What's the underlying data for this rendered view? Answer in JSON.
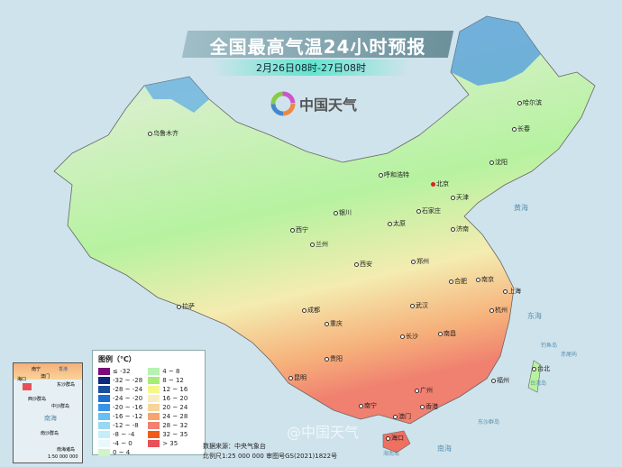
{
  "header": {
    "title": "全国最高气温24小时预报",
    "subtitle": "2月26日08时-27日08时"
  },
  "logo": {
    "text": "中国天气",
    "icon": "china-weather-swirl-icon"
  },
  "cities": [
    "乌鲁木齐",
    "哈尔滨",
    "长春",
    "沈阳",
    "呼和浩特",
    "北京",
    "天津",
    "石家庄",
    "太原",
    "济南",
    "银川",
    "西宁",
    "兰州",
    "郑州",
    "西安",
    "合肥",
    "南京",
    "上海",
    "拉萨",
    "成都",
    "武汉",
    "杭州",
    "重庆",
    "长沙",
    "南昌",
    "贵阳",
    "福州",
    "台北",
    "昆明",
    "广州",
    "南宁",
    "澳门",
    "香港",
    "海口"
  ],
  "seas": [
    "黄海",
    "东海",
    "南海",
    "台湾岛",
    "钓鱼岛",
    "赤尾屿",
    "东沙群岛",
    "海南岛"
  ],
  "legend": {
    "title": "图例（℃）",
    "items": [
      {
        "label": "≤ -32",
        "color": "#7b0a7b"
      },
      {
        "label": "-32 ~ -28",
        "color": "#0b2a7a"
      },
      {
        "label": "-28 ~ -24",
        "color": "#1c4ea0"
      },
      {
        "label": "-24 ~ -20",
        "color": "#1f6fd0"
      },
      {
        "label": "-20 ~ -16",
        "color": "#3a94e6"
      },
      {
        "label": "-16 ~ -12",
        "color": "#66c0f2"
      },
      {
        "label": "-12 ~ -8",
        "color": "#98d8f0"
      },
      {
        "label": "-8 ~ -4",
        "color": "#c4eef8"
      },
      {
        "label": "-4 ~ 0",
        "color": "#e8f8fb"
      },
      {
        "label": "0 ~ 4",
        "color": "#ccf5c8"
      },
      {
        "label": "4 ~ 8",
        "color": "#b6f2b0"
      },
      {
        "label": "8 ~ 12",
        "color": "#a8ec78"
      },
      {
        "label": "12 ~ 16",
        "color": "#f6f78a"
      },
      {
        "label": "16 ~ 20",
        "color": "#f8edc2"
      },
      {
        "label": "20 ~ 24",
        "color": "#f8d49a"
      },
      {
        "label": "24 ~ 28",
        "color": "#f6a46e"
      },
      {
        "label": "28 ~ 32",
        "color": "#f08070"
      },
      {
        "label": "32 ~ 35",
        "color": "#f25a1a"
      },
      {
        "label": "> 35",
        "color": "#e8505a"
      }
    ]
  },
  "inset": {
    "title": "南海诸岛",
    "scale": "1:50 000 000",
    "labels": [
      "南宁",
      "香港",
      "澳门",
      "海口",
      "东沙群岛",
      "西沙群岛",
      "中沙群岛",
      "南海",
      "南沙群岛"
    ]
  },
  "footer": {
    "source": "数据来源：中央气象台",
    "scale": "比例尺1:25 000 000 审图号GS(2021)1822号"
  },
  "watermark": "@中国天气"
}
